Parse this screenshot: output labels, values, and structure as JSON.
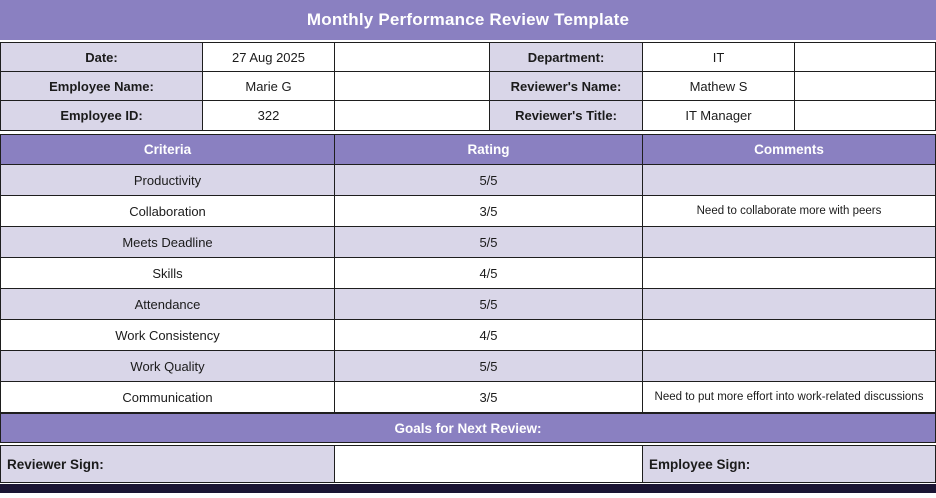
{
  "title": "Monthly Performance Review Template",
  "info": {
    "left": [
      {
        "label": "Date:",
        "value": "27 Aug 2025"
      },
      {
        "label": "Employee Name:",
        "value": "Marie G"
      },
      {
        "label": "Employee ID:",
        "value": "322"
      }
    ],
    "right": [
      {
        "label": "Department:",
        "value": "IT"
      },
      {
        "label": "Reviewer's Name:",
        "value": "Mathew S"
      },
      {
        "label": "Reviewer's Title:",
        "value": "IT Manager"
      }
    ]
  },
  "review_table": {
    "headers": {
      "criteria": "Criteria",
      "rating": "Rating",
      "comments": "Comments"
    },
    "rows": [
      {
        "criteria": "Productivity",
        "rating": "5/5",
        "comment": ""
      },
      {
        "criteria": "Collaboration",
        "rating": "3/5",
        "comment": "Need to collaborate more with peers"
      },
      {
        "criteria": "Meets Deadline",
        "rating": "5/5",
        "comment": ""
      },
      {
        "criteria": "Skills",
        "rating": "4/5",
        "comment": ""
      },
      {
        "criteria": "Attendance",
        "rating": "5/5",
        "comment": ""
      },
      {
        "criteria": "Work Consistency",
        "rating": "4/5",
        "comment": ""
      },
      {
        "criteria": "Work Quality",
        "rating": "5/5",
        "comment": ""
      },
      {
        "criteria": "Communication",
        "rating": "3/5",
        "comment": "Need to put more effort into work-related discussions"
      }
    ]
  },
  "goals_header": "Goals for Next Review:",
  "signatures": {
    "reviewer_label": "Reviewer Sign:",
    "employee_label": "Employee Sign:"
  },
  "colors": {
    "header_purple": "#8a80c1",
    "row_lavender": "#d9d6e8",
    "footer_dark": "#1a1433"
  }
}
